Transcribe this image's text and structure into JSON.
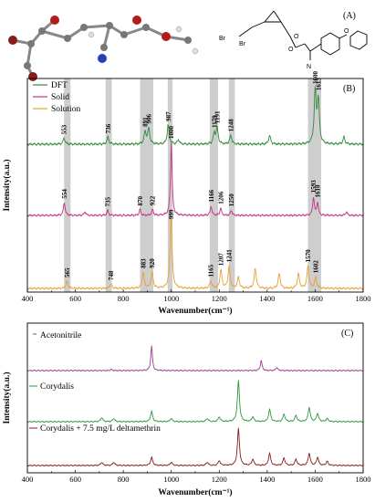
{
  "panel_a": {
    "label": "(A)",
    "structure_labels": [
      "Br",
      "Br",
      "O",
      "O",
      "O",
      "N"
    ]
  },
  "panel_b": {
    "label": "(B)",
    "xlabel": "Wavenumber(cm⁻¹)",
    "ylabel": "Intensity(a.u.)",
    "legend": [
      "DFT",
      "Solid",
      "Solution"
    ],
    "ticks": [
      "400",
      "600",
      "800",
      "1000",
      "1200",
      "1400",
      "1600",
      "1800"
    ]
  },
  "panel_c": {
    "label": "(C)",
    "xlabel": "Wavenumber(cm⁻¹)",
    "ylabel": "Intensity(a.u.)",
    "ticks": [
      "400",
      "600",
      "800",
      "1000",
      "1200",
      "1400",
      "1600",
      "1800"
    ],
    "labels": [
      "Acetonitrile",
      "Corydalis",
      "Corydalis + 7.5 mg/L deltamethrin"
    ]
  },
  "colors": {
    "dft": "#2e8b3a",
    "solid": "#c2318a",
    "solution": "#e8a033",
    "acetonitrile": "#9b3f8f",
    "corydalis": "#2e9a3e",
    "mixture": "#8b1a1a"
  },
  "chart_data": [
    {
      "type": "line",
      "title": "",
      "xlabel": "Wavenumber(cm⁻¹)",
      "ylabel": "Intensity(a.u.)",
      "xlim": [
        400,
        1800
      ],
      "highlight_bands": [
        [
          553,
          580
        ],
        [
          726,
          752
        ],
        [
          870,
          925
        ],
        [
          985,
          1005
        ],
        [
          1160,
          1195
        ],
        [
          1240,
          1265
        ],
        [
          1570,
          1625
        ]
      ],
      "series": [
        {
          "name": "DFT",
          "peaks": [
            [
              553,
              0.07
            ],
            [
              736,
              0.08
            ],
            [
              891,
              0.14
            ],
            [
              906,
              0.18
            ],
            [
              987,
              0.22
            ],
            [
              1030,
              0.05
            ],
            [
              1179,
              0.12
            ],
            [
              1191,
              0.18
            ],
            [
              1248,
              0.1
            ],
            [
              1410,
              0.1
            ],
            [
              1600,
              0.6
            ],
            [
              1613,
              0.5
            ],
            [
              1720,
              0.08
            ]
          ],
          "peak_labels": [
            "553",
            "736",
            "891",
            "906",
            "987",
            "1179",
            "1191",
            "1248",
            "1600",
            "1613"
          ]
        },
        {
          "name": "Solid",
          "peaks": [
            [
              554,
              0.18
            ],
            [
              640,
              0.05
            ],
            [
              735,
              0.07
            ],
            [
              870,
              0.08
            ],
            [
              922,
              0.08
            ],
            [
              1000,
              1.0
            ],
            [
              1166,
              0.13
            ],
            [
              1206,
              0.1
            ],
            [
              1250,
              0.07
            ],
            [
              1593,
              0.25
            ],
            [
              1610,
              0.18
            ],
            [
              1730,
              0.05
            ]
          ],
          "peak_labels": [
            "554",
            "735",
            "870",
            "922",
            "1000",
            "1166",
            "1206",
            "1250",
            "1593",
            "1610"
          ]
        },
        {
          "name": "Solution",
          "peaks": [
            [
              565,
              0.1
            ],
            [
              748,
              0.06
            ],
            [
              883,
              0.22
            ],
            [
              920,
              0.22
            ],
            [
              999,
              1.0
            ],
            [
              1165,
              0.1
            ],
            [
              1207,
              0.25
            ],
            [
              1241,
              0.3
            ],
            [
              1280,
              0.15
            ],
            [
              1350,
              0.28
            ],
            [
              1450,
              0.2
            ],
            [
              1530,
              0.2
            ],
            [
              1570,
              0.3
            ],
            [
              1602,
              0.15
            ]
          ],
          "peak_labels": [
            "565",
            "748",
            "883",
            "920",
            "999",
            "1165",
            "1207",
            "1241",
            "1570",
            "1602"
          ]
        }
      ]
    },
    {
      "type": "line",
      "title": "",
      "xlabel": "Wavenumber(cm⁻¹)",
      "ylabel": "Intensity(a.u.)",
      "xlim": [
        400,
        1800
      ],
      "series": [
        {
          "name": "Acetonitrile",
          "peaks": [
            [
              750,
              0.03
            ],
            [
              918,
              0.6
            ],
            [
              1375,
              0.25
            ],
            [
              1440,
              0.08
            ]
          ]
        },
        {
          "name": "Corydalis",
          "peaks": [
            [
              710,
              0.1
            ],
            [
              760,
              0.08
            ],
            [
              918,
              0.25
            ],
            [
              1000,
              0.08
            ],
            [
              1150,
              0.08
            ],
            [
              1200,
              0.12
            ],
            [
              1280,
              1.0
            ],
            [
              1340,
              0.12
            ],
            [
              1410,
              0.3
            ],
            [
              1470,
              0.18
            ],
            [
              1520,
              0.15
            ],
            [
              1575,
              0.35
            ],
            [
              1610,
              0.2
            ],
            [
              1650,
              0.08
            ]
          ]
        },
        {
          "name": "Corydalis + 7.5 mg/L deltamethrin",
          "peaks": [
            [
              710,
              0.08
            ],
            [
              760,
              0.08
            ],
            [
              918,
              0.2
            ],
            [
              1000,
              0.08
            ],
            [
              1150,
              0.08
            ],
            [
              1200,
              0.12
            ],
            [
              1280,
              0.9
            ],
            [
              1340,
              0.15
            ],
            [
              1410,
              0.3
            ],
            [
              1470,
              0.18
            ],
            [
              1520,
              0.15
            ],
            [
              1575,
              0.3
            ],
            [
              1610,
              0.2
            ],
            [
              1650,
              0.1
            ]
          ]
        }
      ]
    }
  ]
}
